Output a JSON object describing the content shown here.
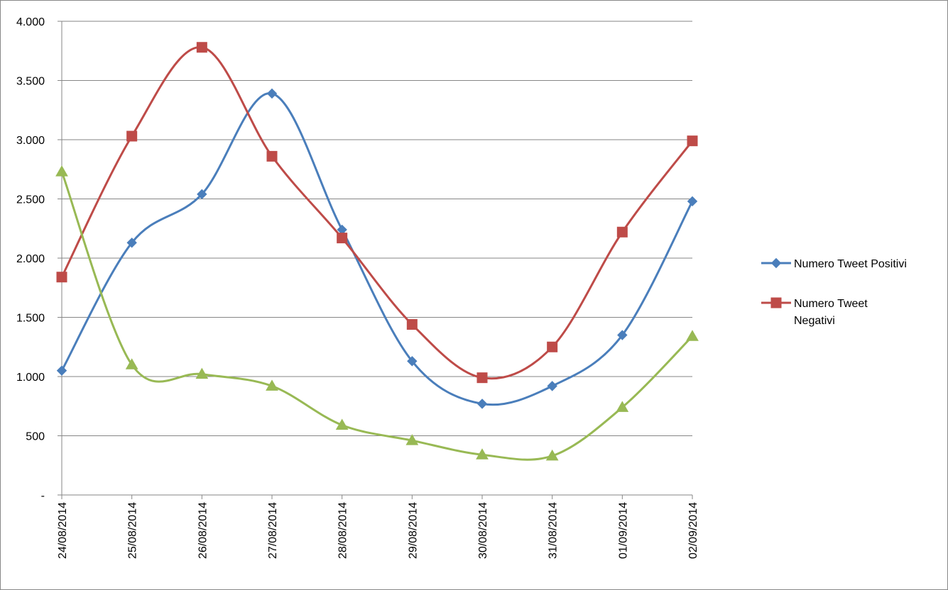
{
  "chart_data": {
    "type": "line",
    "smooth": true,
    "categories": [
      "24/08/2014",
      "25/08/2014",
      "26/08/2014",
      "27/08/2014",
      "28/08/2014",
      "29/08/2014",
      "30/08/2014",
      "31/08/2014",
      "01/09/2014",
      "02/09/2014"
    ],
    "series": [
      {
        "name": "Numero Tweet Positivi",
        "color": "#4a7ebb",
        "marker": "diamond",
        "values": [
          1050,
          2130,
          2540,
          3390,
          2240,
          1130,
          770,
          920,
          1350,
          2480
        ]
      },
      {
        "name": "Numero Tweet Negativi",
        "color": "#be4b48",
        "marker": "square",
        "values": [
          1840,
          3030,
          3780,
          2860,
          2170,
          1440,
          990,
          1250,
          2220,
          2990
        ]
      },
      {
        "name": "",
        "color": "#98b954",
        "marker": "triangle",
        "values": [
          2730,
          1100,
          1020,
          920,
          590,
          460,
          340,
          330,
          740,
          1340
        ]
      }
    ],
    "y_ticks": [
      {
        "value": 0,
        "label": "-"
      },
      {
        "value": 500,
        "label": "500"
      },
      {
        "value": 1000,
        "label": "1.000"
      },
      {
        "value": 1500,
        "label": "1.500"
      },
      {
        "value": 2000,
        "label": "2.000"
      },
      {
        "value": 2500,
        "label": "2.500"
      },
      {
        "value": 3000,
        "label": "3.000"
      },
      {
        "value": 3500,
        "label": "3.500"
      },
      {
        "value": 4000,
        "label": "4.000"
      }
    ],
    "ylim": [
      0,
      4000
    ],
    "grid": "horizontal",
    "legend_position": "right",
    "legend": [
      {
        "label_lines": [
          "Numero Tweet Positivi"
        ],
        "series": 0
      },
      {
        "label_lines": [
          "Numero Tweet",
          "Negativi"
        ],
        "series": 1
      }
    ],
    "title": "",
    "xlabel": "",
    "ylabel": ""
  }
}
